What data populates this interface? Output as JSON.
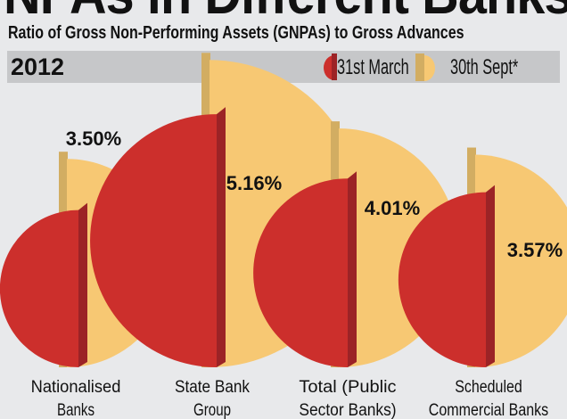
{
  "chart_data": {
    "type": "semicircle-area",
    "title": "NPAs in Different Banks",
    "subtitle": "Ratio of Gross Non-Performing Assets (GNPAs) to Gross Advances",
    "year": "2012",
    "categories": [
      [
        "Nationalised",
        "Banks"
      ],
      [
        "State Bank",
        "Group"
      ],
      [
        "Total (Public",
        "Sector Banks)"
      ],
      [
        "Scheduled",
        "Commercial Banks"
      ]
    ],
    "series": [
      {
        "name": "31st March",
        "color": "#cc2f2c",
        "values": [
          2.64,
          4.25,
          3.17,
          2.94
        ]
      },
      {
        "name": "30th Sept*",
        "color": "#f7c873",
        "values": [
          3.5,
          5.16,
          4.01,
          3.57
        ],
        "labels": [
          "3.50%",
          "5.16%",
          "4.01%",
          "3.57%"
        ]
      }
    ],
    "legend": "top-right"
  }
}
